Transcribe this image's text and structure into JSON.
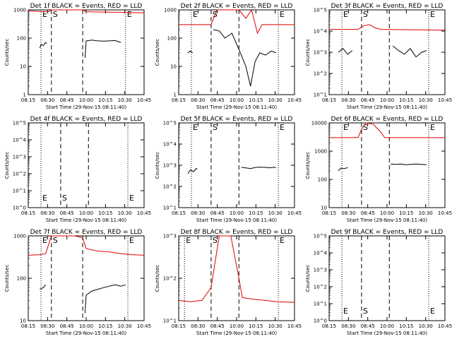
{
  "chart_data": [
    {
      "type": "line",
      "id": "p1",
      "title": "Det 1f BLACK = Events, RED = LLD",
      "xlabel": "Start Time (29-Nov-15 08:11:40)",
      "ylabel": "Counts/sec",
      "y_log": true,
      "y_ticks": [
        "1",
        "10",
        "100",
        "1000"
      ],
      "x_ticks": [
        "08:15",
        "08:30",
        "08:45",
        "10:00",
        "10:15",
        "10:30",
        "10:45"
      ],
      "markers": [
        {
          "label": "E",
          "style": "dotted",
          "x": 0.11
        },
        {
          "label": "S",
          "style": "dashed",
          "x": 0.2
        },
        {
          "label": "",
          "style": "dashed",
          "x": 0.47
        },
        {
          "label": "E",
          "style": "dotted",
          "x": 0.84
        }
      ],
      "series": [
        {
          "color": "#e00000",
          "points": [
            [
              0.0,
              930
            ],
            [
              0.05,
              900
            ],
            [
              0.1,
              880
            ],
            [
              0.18,
              870
            ],
            [
              0.2,
              1100
            ],
            [
              0.47,
              1100
            ],
            [
              0.5,
              860
            ],
            [
              0.6,
              840
            ],
            [
              0.7,
              830
            ],
            [
              0.8,
              820
            ],
            [
              0.9,
              800
            ],
            [
              1.0,
              790
            ]
          ]
        },
        {
          "color": "#000000",
          "points": [
            [
              0.1,
              45
            ],
            [
              0.11,
              60
            ],
            [
              0.13,
              55
            ],
            [
              0.15,
              70
            ],
            [
              0.16,
              65
            ],
            [
              0.47,
              null
            ],
            [
              0.49,
              20
            ],
            [
              0.5,
              80
            ],
            [
              0.55,
              85
            ],
            [
              0.6,
              80
            ],
            [
              0.65,
              78
            ],
            [
              0.7,
              80
            ],
            [
              0.75,
              82
            ],
            [
              0.78,
              75
            ],
            [
              0.8,
              70
            ]
          ]
        }
      ]
    },
    {
      "type": "line",
      "id": "p2",
      "title": "Det 2f BLACK = Events, RED = LLD",
      "xlabel": "Start Time (29-Nov-15 08:11:40)",
      "ylabel": "Counts/sec",
      "y_log": true,
      "y_ticks": [
        "1",
        "10",
        "100",
        "1000"
      ],
      "x_ticks": [
        "08:15",
        "08:30",
        "08:45",
        "10:00",
        "10:15",
        "10:30",
        "10:45"
      ],
      "markers": [
        {
          "label": "E",
          "style": "dotted",
          "x": 0.11
        },
        {
          "label": "S",
          "style": "dashed",
          "x": 0.28
        },
        {
          "label": "",
          "style": "dashed",
          "x": 0.52
        },
        {
          "label": "E",
          "style": "dotted",
          "x": 0.86
        }
      ],
      "series": [
        {
          "color": "#e00000",
          "points": [
            [
              0.0,
              300
            ],
            [
              0.28,
              300
            ],
            [
              0.33,
              1500
            ],
            [
              0.4,
              1300
            ],
            [
              0.46,
              2000
            ],
            [
              0.52,
              1500
            ],
            [
              0.58,
              500
            ],
            [
              0.63,
              1100
            ],
            [
              0.68,
              150
            ],
            [
              0.72,
              300
            ],
            [
              1.0,
              300
            ]
          ]
        },
        {
          "color": "#000000",
          "points": [
            [
              0.08,
              30
            ],
            [
              0.1,
              35
            ],
            [
              0.12,
              30
            ],
            [
              0.28,
              null
            ],
            [
              0.3,
              200
            ],
            [
              0.35,
              180
            ],
            [
              0.4,
              100
            ],
            [
              0.46,
              150
            ],
            [
              0.52,
              40
            ],
            [
              0.58,
              10
            ],
            [
              0.62,
              2
            ],
            [
              0.66,
              15
            ],
            [
              0.7,
              30
            ],
            [
              0.75,
              25
            ],
            [
              0.8,
              35
            ],
            [
              0.84,
              30
            ]
          ]
        }
      ]
    },
    {
      "type": "line",
      "id": "p3",
      "title": "Det 3f BLACK = Events, RED = LLD",
      "xlabel": "Start Time (29-Nov-15 08:11:40)",
      "ylabel": "Counts/sec",
      "y_log": true,
      "y_ticks": [
        "10^1",
        "10^2",
        "10^3",
        "10^4",
        "10^5"
      ],
      "x_ticks": [
        "08:15",
        "08:30",
        "08:45",
        "10:00",
        "10:15",
        "10:30",
        "10:45"
      ],
      "markers": [
        {
          "label": "E",
          "style": "dotted",
          "x": 0.11
        },
        {
          "label": "S",
          "style": "dashed",
          "x": 0.28
        },
        {
          "label": "",
          "style": "dashed",
          "x": 0.52
        },
        {
          "label": "E",
          "style": "dotted",
          "x": 0.86
        }
      ],
      "series": [
        {
          "color": "#e00000",
          "points": [
            [
              0.0,
              12000
            ],
            [
              0.25,
              12000
            ],
            [
              0.3,
              18000
            ],
            [
              0.35,
              20000
            ],
            [
              0.4,
              14000
            ],
            [
              0.45,
              12000
            ],
            [
              1.0,
              11000
            ]
          ]
        },
        {
          "color": "#000000",
          "points": [
            [
              0.08,
              1000
            ],
            [
              0.12,
              1500
            ],
            [
              0.16,
              800
            ],
            [
              0.2,
              1200
            ],
            [
              0.52,
              null
            ],
            [
              0.55,
              2000
            ],
            [
              0.6,
              1200
            ],
            [
              0.65,
              800
            ],
            [
              0.7,
              1500
            ],
            [
              0.75,
              600
            ],
            [
              0.8,
              1000
            ],
            [
              0.84,
              1200
            ]
          ]
        }
      ]
    },
    {
      "type": "line",
      "id": "p4",
      "title": "Det 4f BLACK = Events, RED = LLD",
      "xlabel": "Start Time (29-Nov-15 08:11:40)",
      "ylabel": "Counts/sec",
      "y_log": true,
      "y_ticks": [
        "10^0",
        "10^1",
        "10^2",
        "10^3",
        "10^4",
        "10^5"
      ],
      "x_ticks": [
        "08:15",
        "08:30",
        "08:45",
        "10:00",
        "10:15",
        "10:30",
        "10:45"
      ],
      "markers": [
        {
          "label": "E",
          "style": "dotted",
          "x": 0.11
        },
        {
          "label": "S",
          "style": "dashed",
          "x": 0.28
        },
        {
          "label": "",
          "style": "dashed",
          "x": 0.52
        },
        {
          "label": "E",
          "style": "dotted",
          "x": 0.86
        }
      ],
      "series": []
    },
    {
      "type": "line",
      "id": "p5",
      "title": "Det 5f BLACK = Events, RED = LLD",
      "xlabel": "Start Time (29-Nov-15 08:11:40)",
      "ylabel": "Counts/sec",
      "y_log": true,
      "y_ticks": [
        "10^1",
        "10^2",
        "10^3",
        "10^4",
        "10^5"
      ],
      "x_ticks": [
        "08:15",
        "08:30",
        "08:45",
        "10:00",
        "10:15",
        "10:30",
        "10:45"
      ],
      "markers": [
        {
          "label": "E",
          "style": "dotted",
          "x": 0.11
        },
        {
          "label": "S",
          "style": "dashed",
          "x": 0.28
        },
        {
          "label": "",
          "style": "dashed",
          "x": 0.52
        },
        {
          "label": "E",
          "style": "dotted",
          "x": 0.86
        }
      ],
      "series": [
        {
          "color": "#000000",
          "points": [
            [
              0.08,
              400
            ],
            [
              0.1,
              600
            ],
            [
              0.13,
              500
            ],
            [
              0.15,
              700
            ],
            [
              0.16,
              650
            ],
            [
              0.52,
              null
            ],
            [
              0.54,
              800
            ],
            [
              0.58,
              750
            ],
            [
              0.62,
              700
            ],
            [
              0.66,
              780
            ],
            [
              0.7,
              820
            ],
            [
              0.74,
              800
            ],
            [
              0.78,
              760
            ],
            [
              0.82,
              800
            ],
            [
              0.84,
              780
            ]
          ]
        }
      ]
    },
    {
      "type": "line",
      "id": "p6",
      "title": "Det 6f BLACK = Events, RED = LLD",
      "xlabel": "Start Time (29-Nov-15 08:11:40)",
      "ylabel": "Counts/sec",
      "y_log": true,
      "y_ticks": [
        "10",
        "100",
        "1000",
        "10000"
      ],
      "x_ticks": [
        "08:15",
        "08:30",
        "08:45",
        "10:00",
        "10:15",
        "10:30",
        "10:45"
      ],
      "markers": [
        {
          "label": "E",
          "style": "dotted",
          "x": 0.11
        },
        {
          "label": "S",
          "style": "dashed",
          "x": 0.28
        },
        {
          "label": "",
          "style": "dashed",
          "x": 0.52
        },
        {
          "label": "E",
          "style": "dotted",
          "x": 0.86
        }
      ],
      "series": [
        {
          "color": "#e00000",
          "points": [
            [
              0.0,
              3000
            ],
            [
              0.25,
              3000
            ],
            [
              0.28,
              6000
            ],
            [
              0.32,
              10000
            ],
            [
              0.38,
              9000
            ],
            [
              0.44,
              5000
            ],
            [
              0.48,
              3000
            ],
            [
              1.0,
              3000
            ]
          ]
        },
        {
          "color": "#000000",
          "points": [
            [
              0.08,
              200
            ],
            [
              0.1,
              250
            ],
            [
              0.13,
              240
            ],
            [
              0.16,
              260
            ],
            [
              0.52,
              null
            ],
            [
              0.53,
              350
            ],
            [
              0.58,
              340
            ],
            [
              0.62,
              350
            ],
            [
              0.66,
              330
            ],
            [
              0.7,
              340
            ],
            [
              0.75,
              350
            ],
            [
              0.8,
              340
            ],
            [
              0.84,
              330
            ]
          ]
        }
      ]
    },
    {
      "type": "line",
      "id": "p7",
      "title": "Det 7f BLACK = Events, RED = LLD",
      "xlabel": "Start Time (29-Nov-15 08:11:40)",
      "ylabel": "Counts/sec",
      "y_log": true,
      "y_ticks": [
        "10",
        "100",
        "1000"
      ],
      "x_ticks": [
        "08:15",
        "08:30",
        "08:45",
        "10:00",
        "10:15",
        "10:30",
        "10:45"
      ],
      "markers": [
        {
          "label": "E",
          "style": "dotted",
          "x": 0.11
        },
        {
          "label": "S",
          "style": "dashed",
          "x": 0.2
        },
        {
          "label": "",
          "style": "dashed",
          "x": 0.47
        },
        {
          "label": "E",
          "style": "dotted",
          "x": 0.86
        }
      ],
      "series": [
        {
          "color": "#e00000",
          "points": [
            [
              0.0,
              350
            ],
            [
              0.1,
              360
            ],
            [
              0.15,
              380
            ],
            [
              0.2,
              1500
            ],
            [
              0.3,
              1600
            ],
            [
              0.4,
              1500
            ],
            [
              0.47,
              900
            ],
            [
              0.5,
              500
            ],
            [
              0.6,
              440
            ],
            [
              0.7,
              420
            ],
            [
              0.8,
              380
            ],
            [
              0.9,
              360
            ],
            [
              1.0,
              350
            ]
          ]
        },
        {
          "color": "#000000",
          "points": [
            [
              0.1,
              55
            ],
            [
              0.13,
              60
            ],
            [
              0.15,
              70
            ],
            [
              0.47,
              null
            ],
            [
              0.49,
              15
            ],
            [
              0.5,
              40
            ],
            [
              0.55,
              50
            ],
            [
              0.6,
              55
            ],
            [
              0.65,
              60
            ],
            [
              0.7,
              65
            ],
            [
              0.75,
              70
            ],
            [
              0.8,
              65
            ],
            [
              0.84,
              70
            ]
          ]
        }
      ]
    },
    {
      "type": "line",
      "id": "p8",
      "title": "Det 8f BLACK = Events, RED = LLD",
      "xlabel": "Start Time (29-Nov-15 08:11:40)",
      "ylabel": "Counts/sec",
      "y_log": true,
      "y_ticks": [
        "10^1",
        "10^2",
        "10^3"
      ],
      "x_ticks": [
        "08:15",
        "08:30",
        "08:45",
        "10:00",
        "10:15",
        "10:30",
        "10:45"
      ],
      "markers": [
        {
          "label": "E",
          "style": "dotted",
          "x": 0.05
        },
        {
          "label": "S",
          "style": "dashed",
          "x": 0.28
        },
        {
          "label": "",
          "style": "dashed",
          "x": 0.52
        },
        {
          "label": "E",
          "style": "dotted",
          "x": 0.86
        }
      ],
      "series": [
        {
          "color": "#e00000",
          "points": [
            [
              0.0,
              30
            ],
            [
              0.1,
              28
            ],
            [
              0.2,
              30
            ],
            [
              0.28,
              60
            ],
            [
              0.35,
              1500
            ],
            [
              0.45,
              1600
            ],
            [
              0.52,
              100
            ],
            [
              0.55,
              35
            ],
            [
              0.65,
              32
            ],
            [
              0.75,
              30
            ],
            [
              0.85,
              28
            ],
            [
              1.0,
              27
            ]
          ]
        },
        {
          "color": "#000000",
          "points": [
            [
              0.1,
              3
            ],
            [
              0.13,
              2
            ],
            [
              0.16,
              3
            ],
            [
              0.19,
              2
            ],
            [
              0.52,
              null
            ],
            [
              0.55,
              3
            ],
            [
              0.6,
              2
            ],
            [
              0.65,
              3
            ],
            [
              0.7,
              2
            ],
            [
              0.75,
              3
            ],
            [
              0.8,
              2
            ]
          ]
        }
      ]
    },
    {
      "type": "line",
      "id": "p9",
      "title": "Det 9f BLACK = Events, RED = LLD",
      "xlabel": "Start Time (29-Nov-15 08:11:40)",
      "ylabel": "Counts/sec",
      "y_log": true,
      "y_ticks": [
        "10^0",
        "10^1",
        "10^2",
        "10^3",
        "10^4",
        "10^5"
      ],
      "x_ticks": [
        "08:15",
        "08:30",
        "08:45",
        "10:00",
        "10:15",
        "10:30",
        "10:45"
      ],
      "markers": [
        {
          "label": "E",
          "style": "dotted",
          "x": 0.11
        },
        {
          "label": "S",
          "style": "dashed",
          "x": 0.28
        },
        {
          "label": "",
          "style": "dashed",
          "x": 0.52
        },
        {
          "label": "E",
          "style": "dotted",
          "x": 0.86
        }
      ],
      "series": []
    }
  ]
}
